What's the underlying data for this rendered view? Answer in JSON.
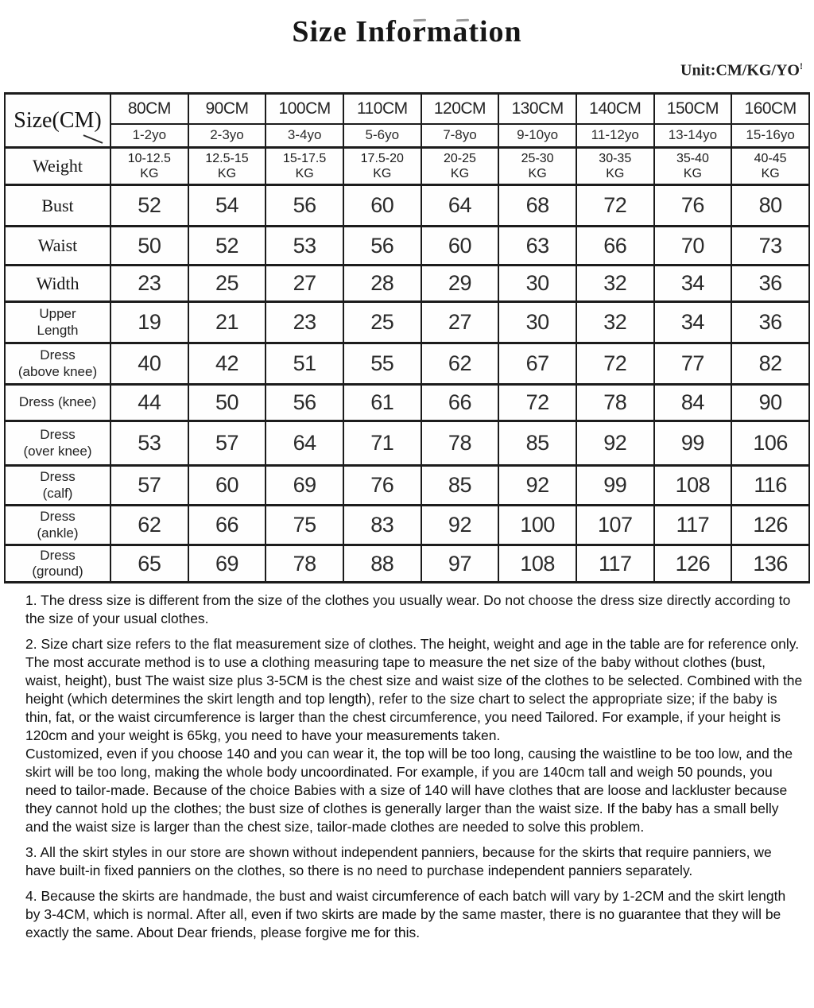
{
  "page": {
    "title": "Size Information",
    "unit_label": "Unit:CM/KG/YO",
    "unit_mark": "!"
  },
  "table": {
    "corner_label": "Size(CM)",
    "sizes": [
      "80CM",
      "90CM",
      "100CM",
      "110CM",
      "120CM",
      "130CM",
      "140CM",
      "150CM",
      "160CM"
    ],
    "ages": [
      "1-2yo",
      "2-3yo",
      "3-4yo",
      "5-6yo",
      "7-8yo",
      "9-10yo",
      "11-12yo",
      "13-14yo",
      "15-16yo"
    ],
    "rows": [
      {
        "label": "Weight",
        "values": [
          "10-12.5\nKG",
          "12.5-15\nKG",
          "15-17.5\nKG",
          "17.5-20\nKG",
          "20-25\nKG",
          "25-30\nKG",
          "30-35\nKG",
          "35-40\nKG",
          "40-45\nKG"
        ]
      },
      {
        "label": "Bust",
        "values": [
          "52",
          "54",
          "56",
          "60",
          "64",
          "68",
          "72",
          "76",
          "80"
        ]
      },
      {
        "label": "Waist",
        "values": [
          "50",
          "52",
          "53",
          "56",
          "60",
          "63",
          "66",
          "70",
          "73"
        ]
      },
      {
        "label": "Width",
        "values": [
          "23",
          "25",
          "27",
          "28",
          "29",
          "30",
          "32",
          "34",
          "36"
        ]
      },
      {
        "label": "Upper\nLength",
        "values": [
          "19",
          "21",
          "23",
          "25",
          "27",
          "30",
          "32",
          "34",
          "36"
        ]
      },
      {
        "label": "Dress\n(above knee)",
        "values": [
          "40",
          "42",
          "51",
          "55",
          "62",
          "67",
          "72",
          "77",
          "82"
        ]
      },
      {
        "label": "Dress (knee)",
        "values": [
          "44",
          "50",
          "56",
          "61",
          "66",
          "72",
          "78",
          "84",
          "90"
        ]
      },
      {
        "label": "Dress\n(over knee)",
        "values": [
          "53",
          "57",
          "64",
          "71",
          "78",
          "85",
          "92",
          "99",
          "106"
        ]
      },
      {
        "label": "Dress\n(calf)",
        "values": [
          "57",
          "60",
          "69",
          "76",
          "85",
          "92",
          "99",
          "108",
          "116"
        ]
      },
      {
        "label": "Dress\n(ankle)",
        "values": [
          "62",
          "66",
          "75",
          "83",
          "92",
          "100",
          "107",
          "117",
          "126"
        ]
      },
      {
        "label": "Dress\n(ground)",
        "values": [
          "65",
          "69",
          "78",
          "88",
          "97",
          "108",
          "117",
          "126",
          "136"
        ]
      }
    ]
  },
  "notes": [
    "1. The dress size is different from the size of the clothes you usually wear. Do not choose the dress size directly according to the size of your usual clothes.",
    "2. Size chart size refers to the flat measurement size of clothes. The height, weight and age in the table are for reference only. The most accurate method is to use a clothing measuring tape to measure the net size of the baby without clothes (bust, waist, height), bust The waist size plus 3-5CM is the chest size and waist size of the clothes to be selected. Combined with the height (which determines the skirt length and top length), refer to the size chart to select the appropriate size; if the baby is thin, fat, or the waist circumference is larger than the chest circumference, you need Tailored. For example, if your height is 120cm and your weight is 65kg, you need to have your measurements taken.\nCustomized, even if you choose 140 and you can wear it, the top will be too long, causing the waistline to be too low, and the skirt will be too long, making the whole body uncoordinated. For example, if you are 140cm tall and weigh 50 pounds, you need to tailor-made. Because of the choice Babies with a size of 140 will have clothes that are loose and lackluster because they cannot hold up the clothes; the bust size of clothes is generally larger than the waist size. If the baby has a small belly and the waist size is larger than the chest size, tailor-made clothes are needed to solve this problem.",
    "3. All the skirt styles in our store are shown without independent panniers, because for the skirts that require panniers, we have built-in fixed panniers on the clothes, so there is no need to purchase independent panniers separately.",
    "4. Because the skirts are handmade, the bust and waist circumference of each batch will vary by 1-2CM and the skirt length by 3-4CM, which is normal. After all, even if two skirts are made by the same master, there is no guarantee that they will be exactly the same. About Dear friends, please forgive me for this."
  ]
}
